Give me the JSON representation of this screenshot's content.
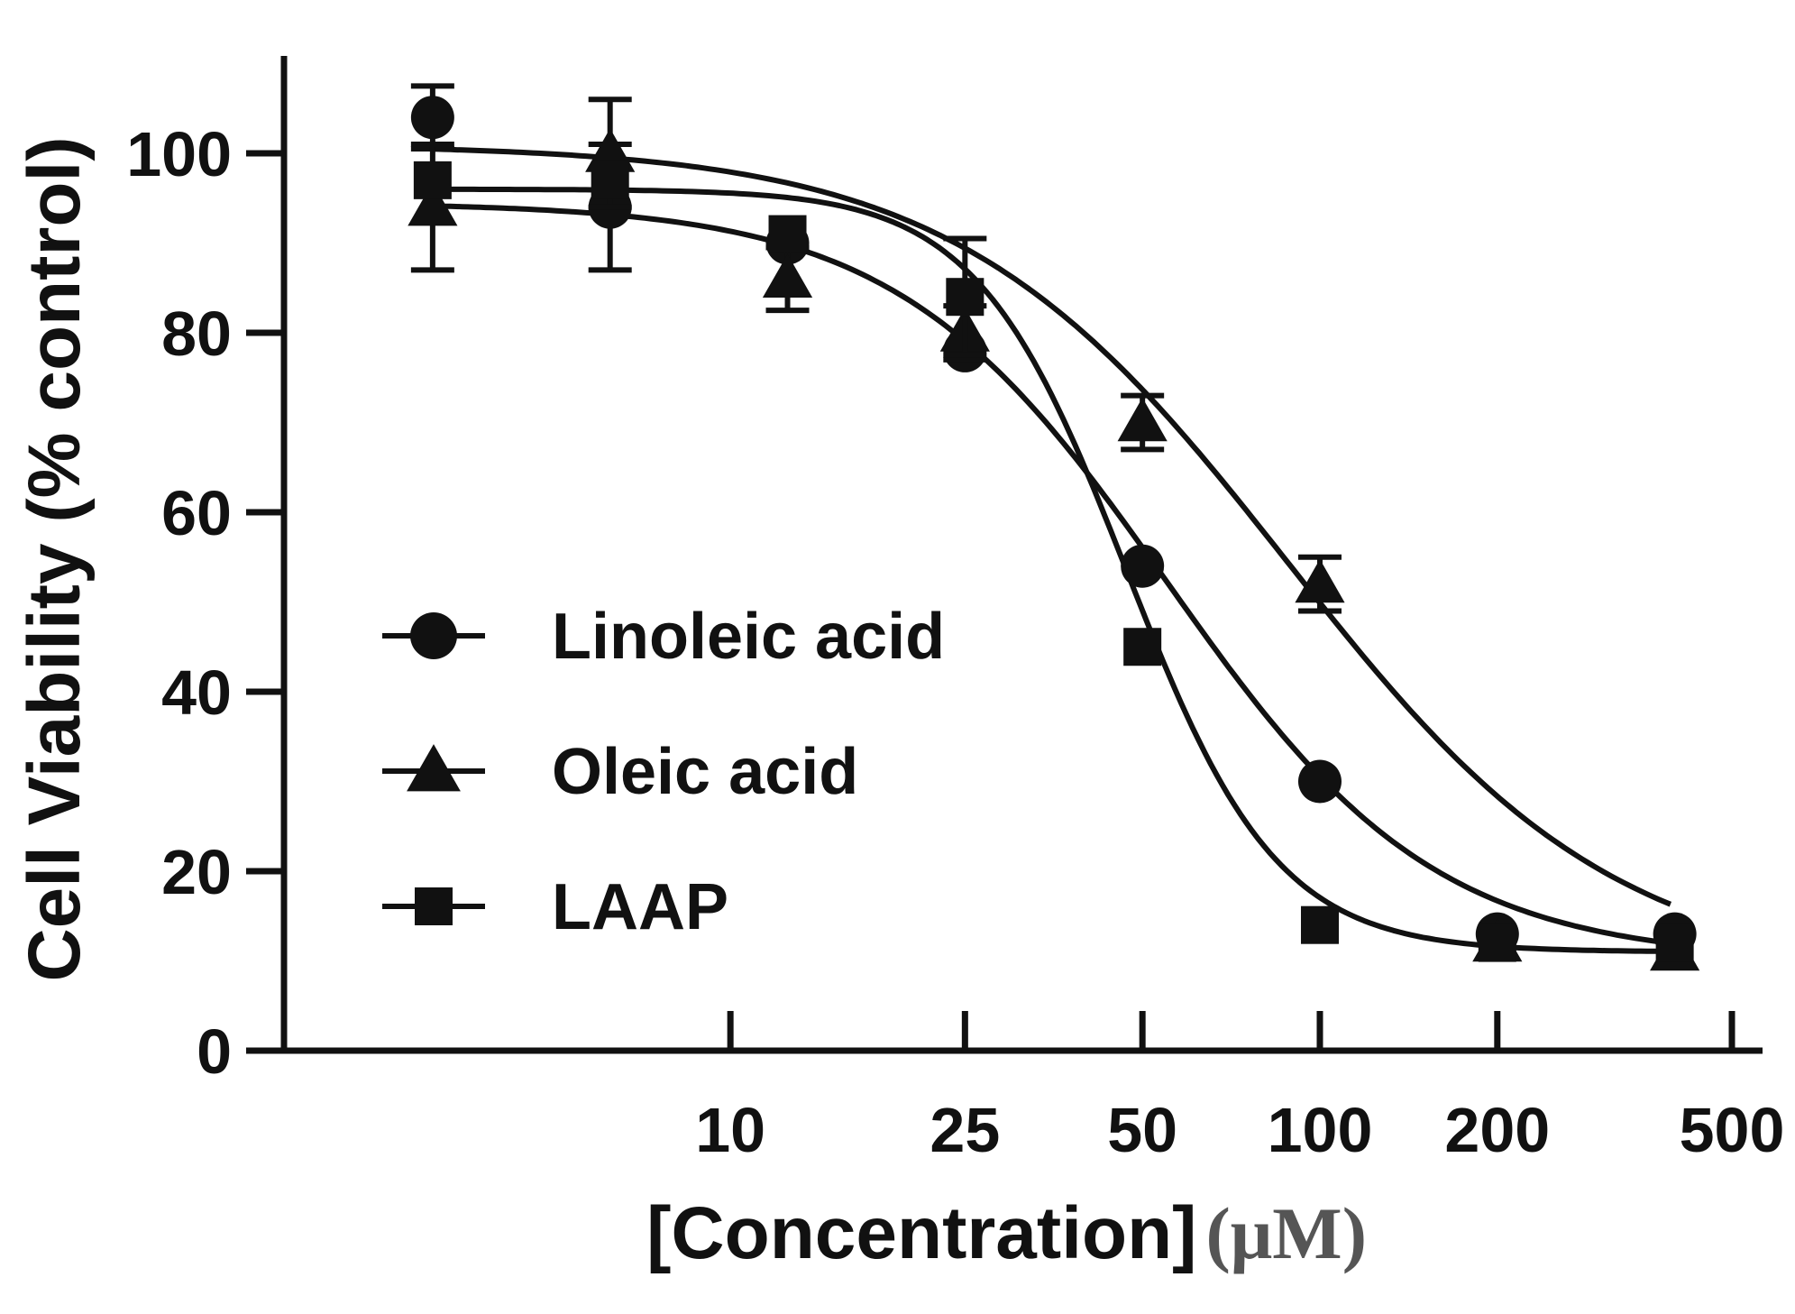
{
  "chart_data": {
    "type": "scatter",
    "x_scale": "log",
    "ylabel": "Cell Viability (% control)",
    "xlabel": "[Concentration]",
    "xlabel_unit": "(μM)",
    "ylim": [
      0,
      110
    ],
    "xlim": [
      2.1,
      500
    ],
    "y_ticks": [
      0,
      20,
      40,
      60,
      80,
      100
    ],
    "y_tick_labels": [
      "0",
      "20",
      "40",
      "60",
      "80",
      "100"
    ],
    "x_ticks": [
      10,
      25,
      50,
      100,
      200,
      500
    ],
    "x_tick_labels": [
      "10",
      "25",
      "50",
      "100",
      "200",
      "500"
    ],
    "grid": false,
    "legend_position": "center-left",
    "colors": {
      "ink": "#111111",
      "unit": "#555555"
    },
    "series": [
      {
        "name": "Linoleic acid",
        "marker": "circle",
        "x": [
          3.125,
          6.25,
          12.5,
          25,
          50,
          100,
          200,
          400
        ],
        "y": [
          104,
          94,
          90,
          78,
          54,
          30,
          13,
          13
        ],
        "error": [
          3.5,
          7,
          0,
          0,
          0,
          0,
          0,
          0
        ],
        "fit": {
          "bottom": 10,
          "top": 94.5,
          "ec50": 55,
          "hill": 1.9
        }
      },
      {
        "name": "Oleic acid",
        "marker": "triangle",
        "x": [
          3.125,
          6.25,
          12.5,
          25,
          50,
          100,
          200,
          400
        ],
        "y": [
          94,
          100,
          86,
          80,
          70,
          52,
          12,
          11
        ],
        "error": [
          7,
          6,
          3.5,
          3,
          3,
          3,
          0,
          0
        ],
        "fit": {
          "bottom": 8,
          "top": 101,
          "ec50": 88,
          "hill": 1.55
        }
      },
      {
        "name": "LAAP",
        "marker": "square",
        "x": [
          3.125,
          6.25,
          12.5,
          25,
          50,
          100,
          200,
          400
        ],
        "y": [
          97,
          97,
          91,
          84,
          45,
          14,
          12,
          12
        ],
        "error": [
          0,
          0,
          0,
          6.5,
          0,
          0,
          0,
          0
        ],
        "fit": {
          "bottom": 11,
          "top": 96,
          "ec50": 47,
          "hill": 3.4
        }
      }
    ]
  }
}
